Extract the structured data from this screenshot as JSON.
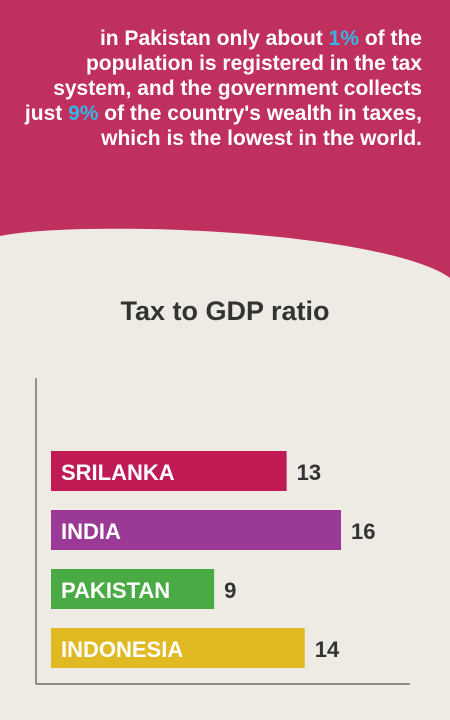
{
  "intro": {
    "part1": "in Pakistan only about ",
    "highlight1": "1%",
    "part2": " of the population is registered in the tax system, and the government collects just ",
    "highlight2": "9%",
    "part3": " of the country's wealth in taxes, which is the lowest in the world."
  },
  "colors": {
    "header_background": "#c0305e",
    "page_background": "#eeebe5",
    "highlight": "#36b6e4"
  },
  "chart_data": {
    "type": "bar",
    "orientation": "horizontal",
    "title": "Tax to GDP ratio",
    "xlabel": "",
    "ylabel": "",
    "categories": [
      "SRILANKA",
      "INDIA",
      "PAKISTAN",
      "INDONESIA"
    ],
    "values": [
      13,
      16,
      9,
      14
    ],
    "colors": [
      "#c01a55",
      "#9b3a96",
      "#4aaa43",
      "#e1b923"
    ],
    "grid": false,
    "legend": "none",
    "category_labels_inside_bars": true,
    "value_labels": true
  }
}
